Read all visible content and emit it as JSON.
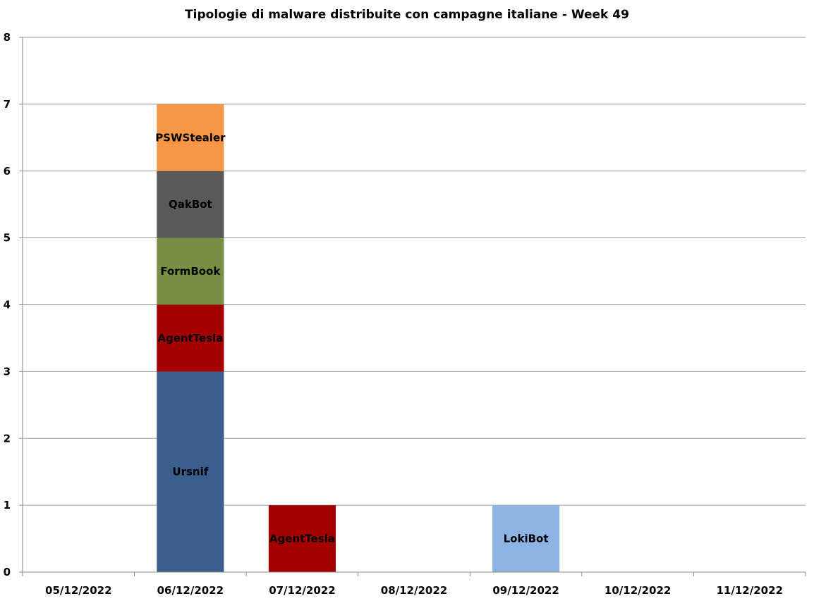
{
  "chart_data": {
    "type": "bar",
    "stacked": true,
    "title": "Tipologie di malware distribuite con campagne italiane - Week 49",
    "xlabel": "",
    "ylabel": "",
    "ylim": [
      0,
      8
    ],
    "y_ticks": [
      "0",
      "1",
      "2",
      "3",
      "4",
      "5",
      "6",
      "7",
      "8"
    ],
    "grid": true,
    "legend": "none",
    "categories": [
      "05/12/2022",
      "06/12/2022",
      "07/12/2022",
      "08/12/2022",
      "09/12/2022",
      "10/12/2022",
      "11/12/2022"
    ],
    "series": [
      {
        "name": "Ursnif",
        "color": "#3B5E8C",
        "values": [
          0,
          3,
          0,
          0,
          0,
          0,
          0
        ]
      },
      {
        "name": "AgentTesla",
        "color": "#A50000",
        "values": [
          0,
          1,
          1,
          0,
          0,
          0,
          0
        ]
      },
      {
        "name": "FormBook",
        "color": "#778F43",
        "values": [
          0,
          1,
          0,
          0,
          0,
          0,
          0
        ]
      },
      {
        "name": "QakBot",
        "color": "#595959",
        "values": [
          0,
          1,
          0,
          0,
          0,
          0,
          0
        ]
      },
      {
        "name": "PSWStealer",
        "color": "#F79646",
        "values": [
          0,
          1,
          0,
          0,
          0,
          0,
          0
        ]
      },
      {
        "name": "LokiBot",
        "color": "#8EB4E3",
        "values": [
          0,
          0,
          0,
          0,
          1,
          0,
          0
        ]
      }
    ]
  }
}
